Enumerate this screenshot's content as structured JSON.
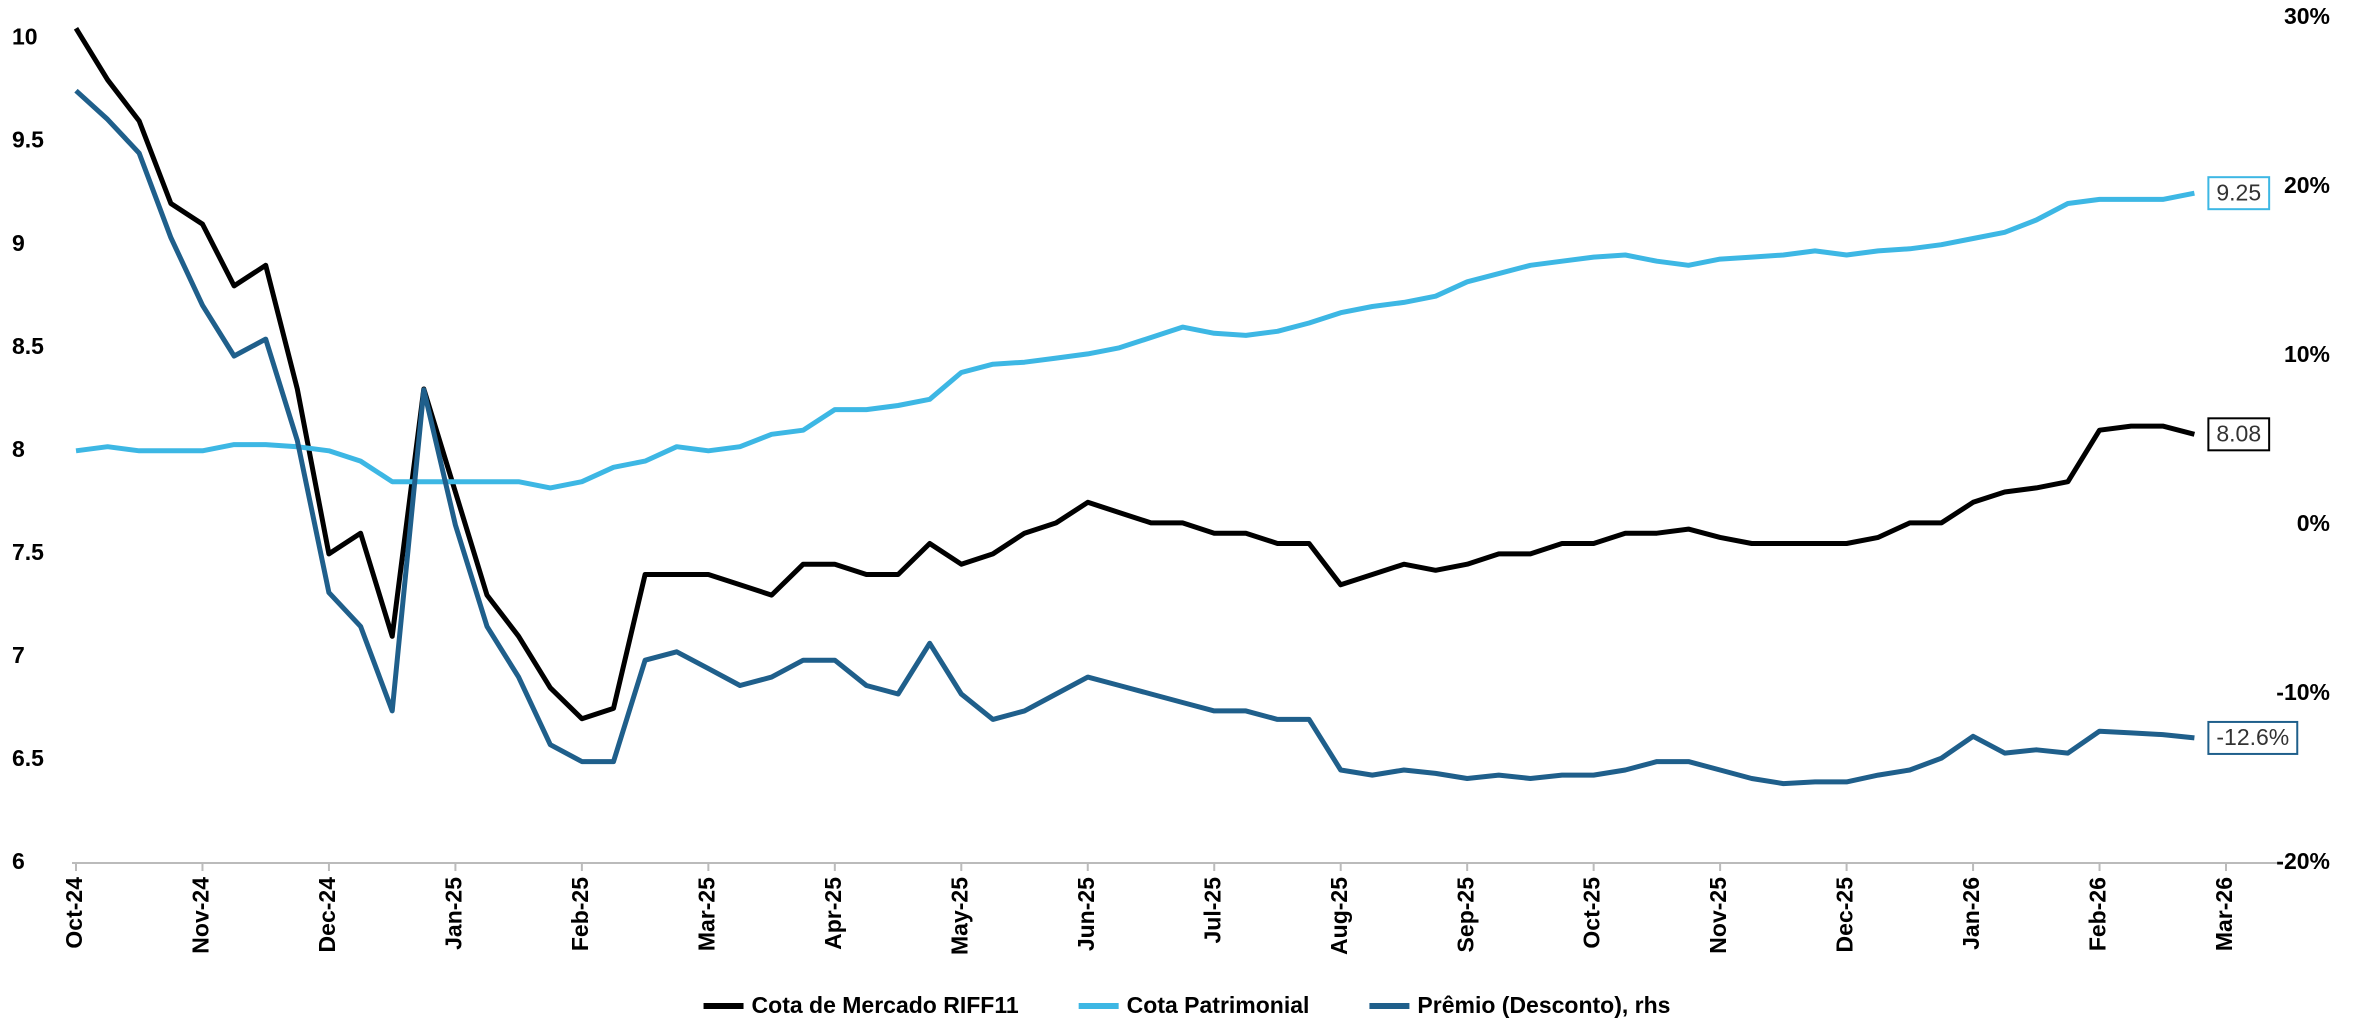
{
  "chart_data": {
    "type": "line",
    "categories": [
      "Oct-24",
      null,
      null,
      null,
      "Nov-24",
      null,
      null,
      null,
      "Dec-24",
      null,
      null,
      null,
      "Jan-25",
      null,
      null,
      null,
      "Feb-25",
      null,
      null,
      null,
      "Mar-25",
      null,
      null,
      null,
      "Apr-25",
      null,
      null,
      null,
      "May-25",
      null,
      null,
      null,
      "Jun-25",
      null,
      null,
      null,
      "Jul-25",
      null,
      null,
      null,
      "Aug-25",
      null,
      null,
      null,
      "Sep-25",
      null,
      null,
      null,
      "Oct-25",
      null,
      null,
      null,
      "Nov-25",
      null,
      null,
      null,
      "Dec-25",
      null,
      null,
      null,
      "Jan-26",
      null,
      null,
      null,
      "Feb-26",
      null,
      null,
      null,
      "Mar-26"
    ],
    "series": [
      {
        "name": "Cota de Mercado RIFF11",
        "color": "#000000",
        "end_label": "8.08",
        "values": [
          10.05,
          9.8,
          9.6,
          9.2,
          9.1,
          8.8,
          8.9,
          8.3,
          7.5,
          7.6,
          7.1,
          8.3,
          7.8,
          7.3,
          7.1,
          6.85,
          6.7,
          6.75,
          7.4,
          7.4,
          7.4,
          7.35,
          7.3,
          7.45,
          7.45,
          7.4,
          7.4,
          7.55,
          7.45,
          7.5,
          7.6,
          7.65,
          7.75,
          7.7,
          7.65,
          7.65,
          7.6,
          7.6,
          7.55,
          7.55,
          7.35,
          7.4,
          7.45,
          7.42,
          7.45,
          7.5,
          7.5,
          7.55,
          7.55,
          7.6,
          7.6,
          7.62,
          7.58,
          7.55,
          7.55,
          7.55,
          7.55,
          7.58,
          7.65,
          7.65,
          7.75,
          7.8,
          7.82,
          7.85,
          8.1,
          8.12,
          8.12,
          8.08,
          null
        ]
      },
      {
        "name": "Cota Patrimonial",
        "color": "#3db7e4",
        "end_label": "9.25",
        "values": [
          8.0,
          8.02,
          8.0,
          8.0,
          8.0,
          8.03,
          8.03,
          8.02,
          8.0,
          7.95,
          7.85,
          7.85,
          7.85,
          7.85,
          7.85,
          7.82,
          7.85,
          7.92,
          7.95,
          8.02,
          8.0,
          8.02,
          8.08,
          8.1,
          8.2,
          8.2,
          8.22,
          8.25,
          8.38,
          8.42,
          8.43,
          8.45,
          8.47,
          8.5,
          8.55,
          8.6,
          8.57,
          8.56,
          8.58,
          8.62,
          8.67,
          8.7,
          8.72,
          8.75,
          8.82,
          8.86,
          8.9,
          8.92,
          8.94,
          8.95,
          8.92,
          8.9,
          8.93,
          8.94,
          8.95,
          8.97,
          8.95,
          8.97,
          8.98,
          9.0,
          9.03,
          9.06,
          9.12,
          9.2,
          9.22,
          9.22,
          9.22,
          9.25,
          null
        ]
      },
      {
        "name": "Prêmio (Desconto), rhs",
        "color": "#1f5f8b",
        "axis": "y2",
        "end_label": "-12.6%",
        "values": [
          25.7,
          24,
          22,
          17,
          13,
          10,
          11,
          5,
          -4,
          -6,
          -11,
          8,
          0,
          -6,
          -9,
          -13,
          -14,
          -14,
          -8,
          -7.5,
          -8.5,
          -9.5,
          -9,
          -8,
          -8,
          -9.5,
          -10,
          -7,
          -10,
          -11.5,
          -11,
          -10,
          -9,
          -9.5,
          -10,
          -10.5,
          -11,
          -11,
          -11.5,
          -11.5,
          -14.5,
          -14.8,
          -14.5,
          -14.7,
          -15,
          -14.8,
          -15,
          -14.8,
          -14.8,
          -14.5,
          -14,
          -14,
          -14.5,
          -15,
          -15.3,
          -15.2,
          -15.2,
          -14.8,
          -14.5,
          -13.8,
          -12.5,
          -13.5,
          -13.3,
          -13.5,
          -12.2,
          -12.3,
          -12.4,
          -12.6,
          null
        ]
      }
    ],
    "ylim": [
      6,
      10.1
    ],
    "yticks": [
      6,
      6.5,
      7,
      7.5,
      8,
      8.5,
      9,
      9.5,
      10
    ],
    "y2lim": [
      -20,
      30
    ],
    "y2ticks": [
      {
        "value": -20,
        "label": "-20%"
      },
      {
        "value": -10,
        "label": "-10%"
      },
      {
        "value": 0,
        "label": "0%"
      },
      {
        "value": 10,
        "label": "10%"
      },
      {
        "value": 20,
        "label": "20%"
      },
      {
        "value": 30,
        "label": "30%"
      }
    ],
    "legend": "bottom"
  }
}
